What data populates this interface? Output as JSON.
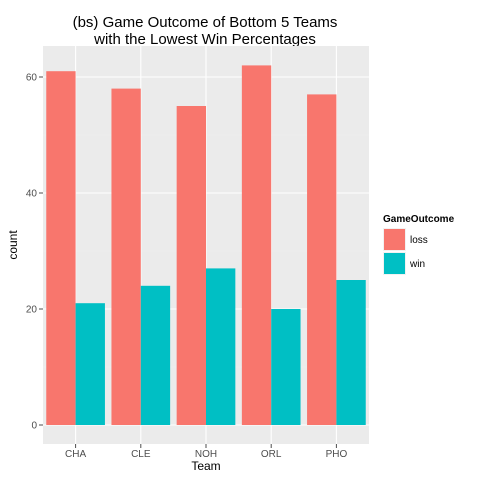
{
  "chart_data": {
    "type": "bar",
    "title": [
      "(bs) Game Outcome of Bottom 5 Teams",
      "with the Lowest Win Percentages"
    ],
    "xlabel": "Team",
    "ylabel": "count",
    "categories": [
      "CHA",
      "CLE",
      "NOH",
      "ORL",
      "PHO"
    ],
    "series": [
      {
        "name": "loss",
        "values": [
          61,
          58,
          55,
          62,
          57
        ],
        "color": "#F8766D"
      },
      {
        "name": "win",
        "values": [
          21,
          24,
          27,
          20,
          25
        ],
        "color": "#00BFC4"
      }
    ],
    "ylim": [
      0,
      65
    ],
    "yticks": [
      0,
      20,
      40,
      60
    ],
    "grid": true,
    "legend": {
      "title": "GameOutcome",
      "position": "right"
    },
    "panel_background": "#EBEBEB",
    "grid_color": "#FFFFFF"
  }
}
